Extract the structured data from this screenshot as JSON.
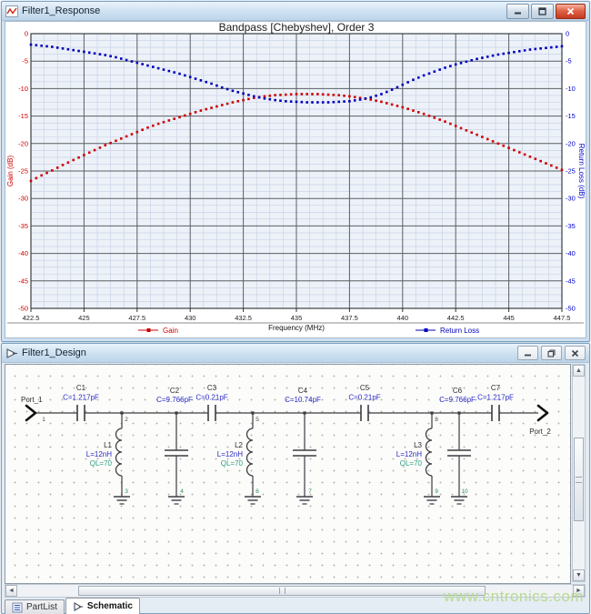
{
  "watermark": "www.cntronics.com",
  "response_window": {
    "title": "Filter1_Response",
    "icons": {
      "title_icon": "line-chart-icon",
      "buttons": [
        "minimize-icon",
        "maximize-icon",
        "close-icon"
      ]
    }
  },
  "design_window": {
    "title": "Filter1_Design",
    "icons": {
      "title_icon": "pointer-icon",
      "buttons": [
        "minimize-icon",
        "restore-icon",
        "close-icon"
      ]
    },
    "tabs": [
      {
        "label": "PartList",
        "icon": "partlist-icon",
        "active": false
      },
      {
        "label": "Schematic",
        "icon": "schematic-pointer-icon",
        "active": true
      }
    ]
  },
  "chart_data": {
    "type": "line",
    "title": "Bandpass [Chebyshev], Order 3",
    "xlabel": "Frequency (MHz)",
    "ylabel_left": "Gain (dB)",
    "ylabel_right": "Return Loss (dB)",
    "xlim": [
      422.5,
      447.5
    ],
    "ylim": [
      -50,
      0
    ],
    "x_ticks": [
      422.5,
      425,
      427.5,
      430,
      432.5,
      435,
      437.5,
      440,
      442.5,
      445,
      447.5
    ],
    "y_ticks": [
      0,
      -5,
      -10,
      -15,
      -20,
      -25,
      -30,
      -35,
      -40,
      -45,
      -50
    ],
    "minor_divisions": 4,
    "grid": true,
    "legend_position": "bottom",
    "plot_bg": "#edf1f8",
    "minor_grid_color": "#c3cfe4",
    "major_grid_color": "#5a5f66",
    "axis_color_left": "#cc0000",
    "axis_color_right": "#0000cc",
    "x_start": 422.5,
    "x_step": 0.5,
    "x": [
      422.5,
      423,
      423.5,
      424,
      424.5,
      425,
      425.5,
      426,
      426.5,
      427,
      427.5,
      428,
      428.5,
      429,
      429.5,
      430,
      430.5,
      431,
      431.5,
      432,
      432.5,
      433,
      433.5,
      434,
      434.5,
      435,
      435.5,
      436,
      436.5,
      437,
      437.5,
      438,
      438.5,
      439,
      439.5,
      440,
      440.5,
      441,
      441.5,
      442,
      442.5,
      443,
      443.5,
      444,
      444.5,
      445,
      445.5,
      446,
      446.5,
      447,
      447.5
    ],
    "series": [
      {
        "name": "Gain",
        "color": "#cc0000",
        "axis": "left",
        "values": [
          -26.8,
          -25.8,
          -24.9,
          -23.9,
          -23.0,
          -22.1,
          -21.2,
          -20.3,
          -19.5,
          -18.7,
          -17.9,
          -17.1,
          -16.4,
          -15.8,
          -15.2,
          -14.6,
          -14.0,
          -13.5,
          -13.0,
          -12.5,
          -12.1,
          -11.7,
          -11.4,
          -11.2,
          -11.1,
          -11.0,
          -11.0,
          -11.0,
          -11.1,
          -11.2,
          -11.4,
          -11.7,
          -12.0,
          -12.4,
          -12.9,
          -13.4,
          -14.0,
          -14.6,
          -15.3,
          -16.0,
          -16.8,
          -17.6,
          -18.4,
          -19.2,
          -20.0,
          -20.8,
          -21.6,
          -22.4,
          -23.2,
          -24.0,
          -24.8
        ]
      },
      {
        "name": "Return Loss",
        "color": "#0000bb",
        "axis": "right",
        "values": [
          -2.0,
          -2.2,
          -2.4,
          -2.7,
          -3.0,
          -3.3,
          -3.6,
          -3.9,
          -4.3,
          -4.8,
          -5.3,
          -5.8,
          -6.3,
          -6.8,
          -7.3,
          -7.9,
          -8.5,
          -9.1,
          -9.8,
          -10.4,
          -10.9,
          -11.4,
          -11.8,
          -12.1,
          -12.3,
          -12.4,
          -12.5,
          -12.5,
          -12.5,
          -12.4,
          -12.3,
          -12.0,
          -11.6,
          -11.0,
          -10.2,
          -9.3,
          -8.4,
          -7.6,
          -6.9,
          -6.2,
          -5.6,
          -5.1,
          -4.6,
          -4.2,
          -3.8,
          -3.5,
          -3.2,
          -2.9,
          -2.7,
          -2.5,
          -2.3
        ]
      }
    ]
  },
  "schematic": {
    "wire_color": "#3c3c44",
    "label_color": "#2b2b2b",
    "value_color": "#2929c8",
    "q_color": "#2e9e82",
    "node_color": "#2e8b57",
    "top_node_color": "#44503f",
    "ports": [
      {
        "name": "Port_1",
        "node": "1"
      },
      {
        "name": "Port_2"
      }
    ],
    "series_capacitors": [
      {
        "name": "C1",
        "value": "C=1.217pF",
        "x": 83
      },
      {
        "name": "C3",
        "value": "C=0.21pF",
        "x": 227
      },
      {
        "name": "C5",
        "value": "C=0.21pF",
        "x": 395
      },
      {
        "name": "C7",
        "value": "C=1.217pF",
        "x": 539
      }
    ],
    "shunt_sections": [
      {
        "inductor": {
          "name": "L1",
          "value": "L=12nH",
          "q": "QL=70",
          "x": 128,
          "top_node": "2",
          "bottom_node": "3"
        },
        "capacitor": {
          "name": "C2",
          "value": "C=9.766pF",
          "x": 188,
          "bottom_node": "4"
        }
      },
      {
        "inductor": {
          "name": "L2",
          "value": "L=12nH",
          "q": "QL=70",
          "x": 272,
          "top_node": "5",
          "bottom_node": "6"
        },
        "capacitor": {
          "name": "C4",
          "value": "C=10.74pF",
          "x": 329,
          "bottom_node": "7"
        }
      },
      {
        "inductor": {
          "name": "L3",
          "value": "L=12nH",
          "q": "QL=70",
          "x": 469,
          "top_node": "8",
          "bottom_node": "9"
        },
        "capacitor": {
          "name": "C6",
          "value": "C=9.766pF",
          "x": 499,
          "bottom_node": "10"
        }
      }
    ]
  }
}
